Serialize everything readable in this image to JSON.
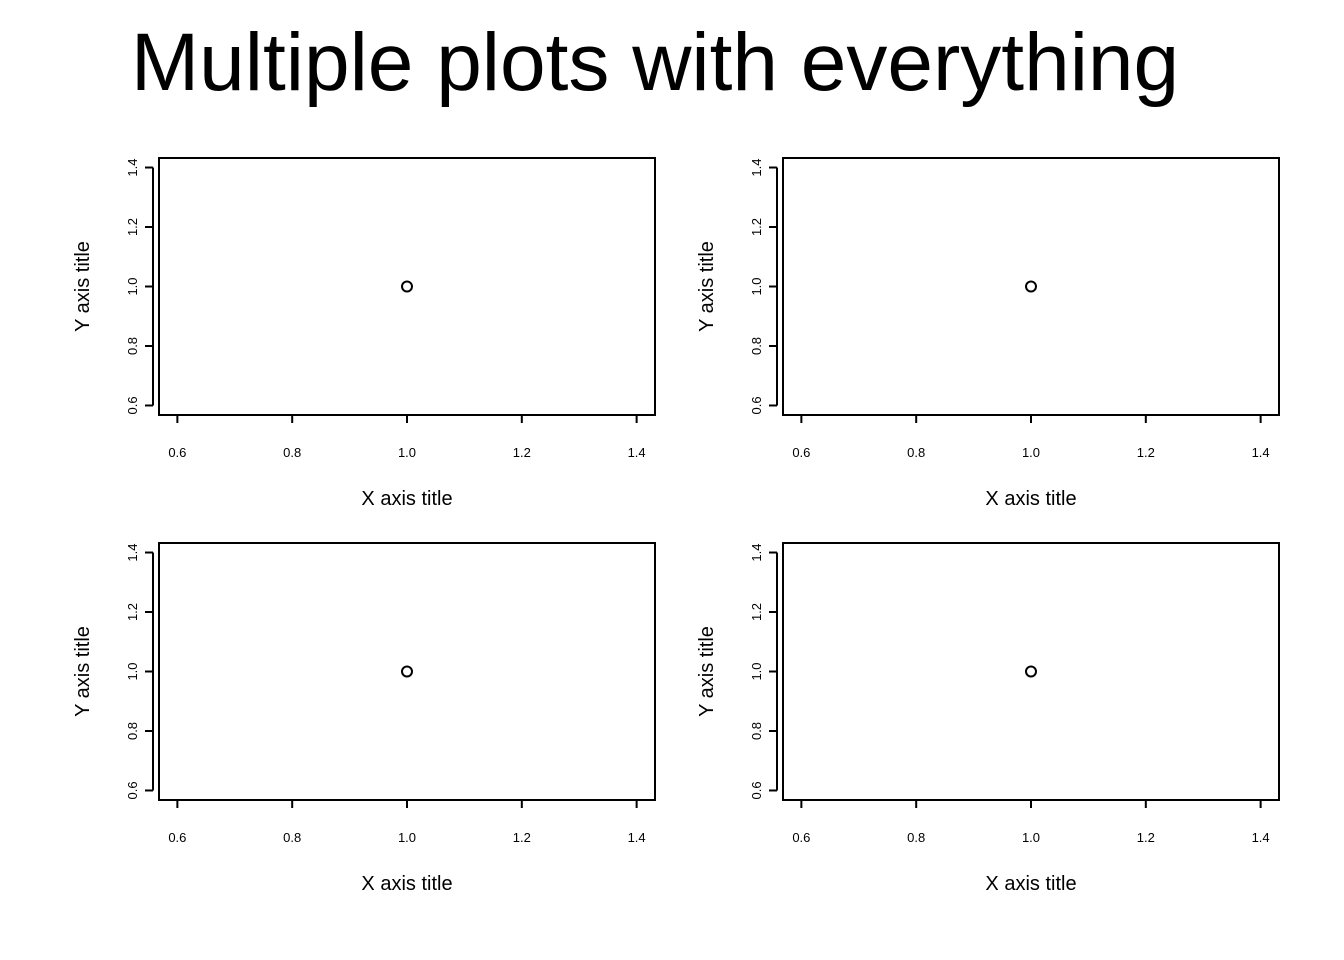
{
  "title": "Multiple plots with everything",
  "chart_data": [
    {
      "type": "scatter",
      "xlabel": "X axis title",
      "ylabel": "Y axis title",
      "xlim": [
        0.6,
        1.4
      ],
      "ylim": [
        0.6,
        1.4
      ],
      "x_ticks": [
        "0.6",
        "0.8",
        "1.0",
        "1.2",
        "1.4"
      ],
      "y_ticks": [
        "0.6",
        "0.8",
        "1.0",
        "1.2",
        "1.4"
      ],
      "points": [
        {
          "x": 1.0,
          "y": 1.0
        }
      ]
    },
    {
      "type": "scatter",
      "xlabel": "X axis title",
      "ylabel": "Y axis title",
      "xlim": [
        0.6,
        1.4
      ],
      "ylim": [
        0.6,
        1.4
      ],
      "x_ticks": [
        "0.6",
        "0.8",
        "1.0",
        "1.2",
        "1.4"
      ],
      "y_ticks": [
        "0.6",
        "0.8",
        "1.0",
        "1.2",
        "1.4"
      ],
      "points": [
        {
          "x": 1.0,
          "y": 1.0
        }
      ]
    },
    {
      "type": "scatter",
      "xlabel": "X axis title",
      "ylabel": "Y axis title",
      "xlim": [
        0.6,
        1.4
      ],
      "ylim": [
        0.6,
        1.4
      ],
      "x_ticks": [
        "0.6",
        "0.8",
        "1.0",
        "1.2",
        "1.4"
      ],
      "y_ticks": [
        "0.6",
        "0.8",
        "1.0",
        "1.2",
        "1.4"
      ],
      "points": [
        {
          "x": 1.0,
          "y": 1.0
        }
      ]
    },
    {
      "type": "scatter",
      "xlabel": "X axis title",
      "ylabel": "Y axis title",
      "xlim": [
        0.6,
        1.4
      ],
      "ylim": [
        0.6,
        1.4
      ],
      "x_ticks": [
        "0.6",
        "0.8",
        "1.0",
        "1.2",
        "1.4"
      ],
      "y_ticks": [
        "0.6",
        "0.8",
        "1.0",
        "1.2",
        "1.4"
      ],
      "points": [
        {
          "x": 1.0,
          "y": 1.0
        }
      ]
    }
  ]
}
